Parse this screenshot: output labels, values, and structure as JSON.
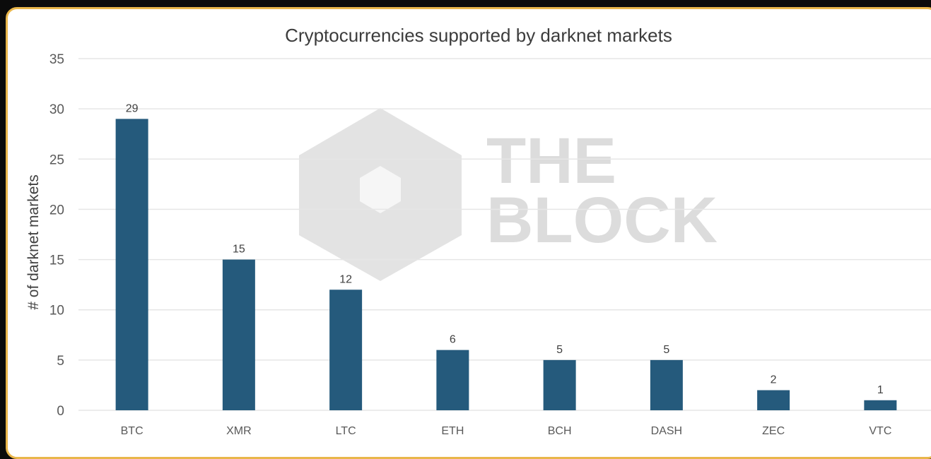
{
  "chart_data": {
    "type": "bar",
    "title": "Cryptocurrencies supported by darknet markets",
    "xlabel": "",
    "ylabel": "# of darknet markets",
    "categories": [
      "BTC",
      "XMR",
      "LTC",
      "ETH",
      "BCH",
      "DASH",
      "ZEC",
      "VTC"
    ],
    "values": [
      29,
      15,
      12,
      6,
      5,
      5,
      2,
      1
    ],
    "ylim": [
      0,
      35
    ],
    "yticks": [
      0,
      5,
      10,
      15,
      20,
      25,
      30,
      35
    ],
    "grid": true,
    "legend": "none",
    "bar_color": "#255a7c"
  },
  "watermark": {
    "line1": "THE",
    "line2": "BLOCK"
  },
  "colors": {
    "frame_border": "#e9b64a",
    "background": "#ffffff",
    "grid": "#e6e6e6"
  }
}
